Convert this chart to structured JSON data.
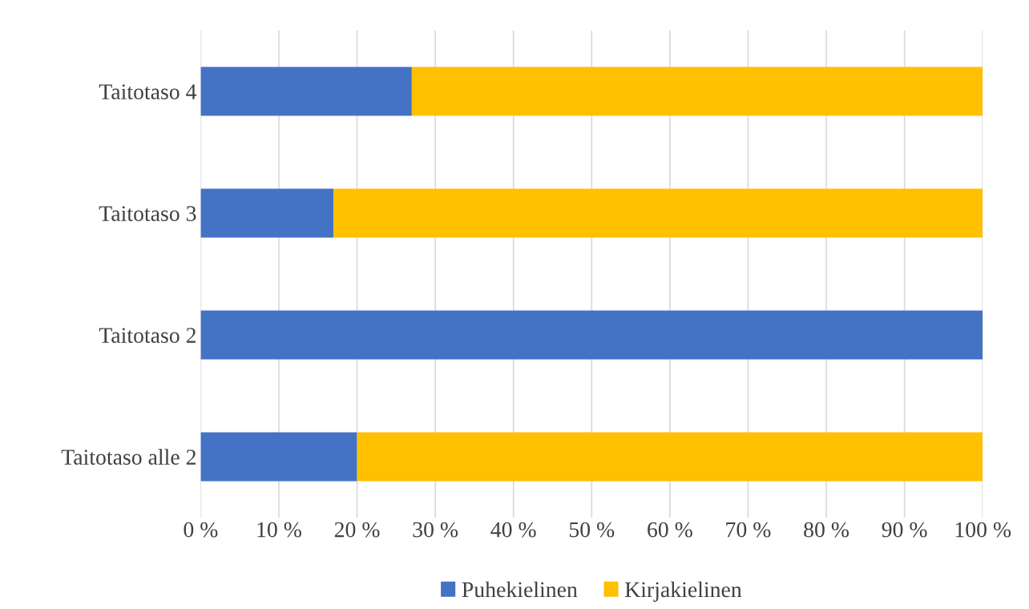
{
  "chart_data": {
    "type": "bar",
    "orientation": "horizontal",
    "stacked": true,
    "categories": [
      "Taitotaso 4",
      "Taitotaso 3",
      "Taitotaso 2",
      "Taitotaso alle 2"
    ],
    "series": [
      {
        "name": "Puhekielinen",
        "color": "#4472c4",
        "values": [
          27,
          17,
          100,
          20
        ]
      },
      {
        "name": "Kirjakielinen",
        "color": "#ffc000",
        "values": [
          73,
          83,
          null,
          80
        ]
      }
    ],
    "xlim": [
      0,
      100
    ],
    "xticks": [
      {
        "value": 0,
        "label": "0 %"
      },
      {
        "value": 10,
        "label": "10 %"
      },
      {
        "value": 20,
        "label": "20 %"
      },
      {
        "value": 30,
        "label": "30 %"
      },
      {
        "value": 40,
        "label": "40 %"
      },
      {
        "value": 50,
        "label": "50 %"
      },
      {
        "value": 60,
        "label": "60 %"
      },
      {
        "value": 70,
        "label": "70 %"
      },
      {
        "value": 80,
        "label": "80 %"
      },
      {
        "value": 90,
        "label": "90 %"
      },
      {
        "value": 100,
        "label": "100 %"
      }
    ],
    "grid": "x",
    "legend": "bottom"
  }
}
